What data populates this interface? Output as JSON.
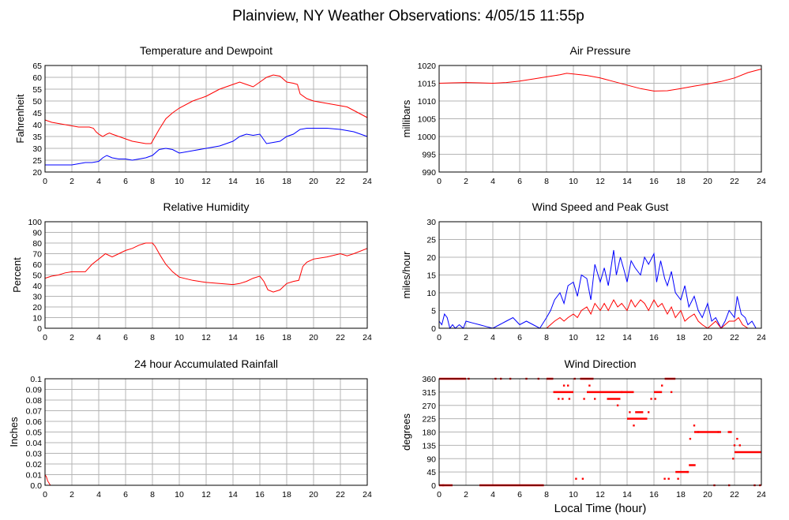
{
  "page": {
    "title": "Plainview, NY Weather Observations: 4/05/15 11:55p",
    "xlabel": "Local Time (hour)"
  },
  "colors": {
    "series_red": "#ff0000",
    "series_blue": "#0000ff",
    "grid": "#b4b4b4",
    "axis": "#000000"
  },
  "chart_data": [
    {
      "type": "line",
      "title": "Temperature and Dewpoint",
      "xlabel": "",
      "ylabel": "Fahrenheit",
      "xlim": [
        0,
        24
      ],
      "ylim": [
        20,
        65
      ],
      "xticks": [
        0,
        2,
        4,
        6,
        8,
        10,
        12,
        14,
        16,
        18,
        20,
        22,
        24
      ],
      "yticks": [
        20,
        25,
        30,
        35,
        40,
        45,
        50,
        55,
        60,
        65
      ],
      "grid": true,
      "series": [
        {
          "color": "red",
          "x": [
            0,
            0.5,
            1,
            1.5,
            2,
            2.5,
            3,
            3.3,
            3.6,
            3.8,
            4,
            4.3,
            4.6,
            4.8,
            5,
            5.5,
            6,
            6.5,
            7,
            7.5,
            7.9,
            8.1,
            8.5,
            9,
            9.5,
            10,
            11,
            12,
            13,
            14,
            14.5,
            15,
            15.5,
            16,
            16.5,
            17,
            17.5,
            18,
            18.5,
            18.8,
            19,
            19.5,
            20,
            21,
            22,
            22.5,
            23,
            23.5,
            24
          ],
          "y": [
            42,
            41,
            40.5,
            40,
            39.5,
            39,
            39,
            39,
            38.5,
            37,
            36,
            35,
            36,
            36.5,
            36,
            35,
            34,
            33,
            32.5,
            32,
            32,
            34,
            38,
            42.5,
            45,
            47,
            50,
            52,
            55,
            57,
            58,
            57,
            56,
            58,
            60,
            61,
            60.5,
            58,
            57.5,
            57,
            53,
            51,
            50,
            49,
            48,
            47.5,
            46,
            44.5,
            43
          ]
        },
        {
          "color": "blue",
          "x": [
            0,
            0.5,
            1,
            1.5,
            2,
            2.5,
            3,
            3.5,
            4,
            4.3,
            4.6,
            5,
            5.5,
            6,
            6.5,
            7,
            7.5,
            8,
            8.5,
            9,
            9.5,
            10,
            11,
            12,
            13,
            14,
            14.5,
            15,
            15.5,
            16,
            16.5,
            17,
            17.5,
            18,
            18.5,
            19,
            19.5,
            20,
            21,
            22,
            22.5,
            23,
            23.5,
            24
          ],
          "y": [
            23,
            23,
            23,
            23,
            23,
            23.5,
            24,
            24,
            24.5,
            26,
            27,
            26,
            25.5,
            25.5,
            25,
            25.5,
            26,
            27,
            29.5,
            30,
            29.5,
            28,
            29,
            30,
            31,
            33,
            35,
            36,
            35.5,
            36,
            32,
            32.5,
            33,
            35,
            36,
            38,
            38.5,
            38.5,
            38.5,
            38,
            37.5,
            37,
            36,
            35
          ]
        }
      ]
    },
    {
      "type": "line",
      "title": "Air Pressure",
      "xlabel": "",
      "ylabel": "millibars",
      "xlim": [
        0,
        24
      ],
      "ylim": [
        990,
        1020
      ],
      "xticks": [
        0,
        2,
        4,
        6,
        8,
        10,
        12,
        14,
        16,
        18,
        20,
        22,
        24
      ],
      "yticks": [
        990,
        995,
        1000,
        1005,
        1010,
        1015,
        1020
      ],
      "grid": true,
      "series": [
        {
          "color": "red",
          "x": [
            0,
            1,
            2,
            3,
            4,
            5,
            6,
            7,
            8,
            9,
            9.5,
            10,
            11,
            12,
            13,
            14,
            15,
            16,
            17,
            18,
            19,
            20,
            21,
            22,
            23,
            24
          ],
          "y": [
            1015,
            1015.1,
            1015.2,
            1015.1,
            1015,
            1015.2,
            1015.6,
            1016.2,
            1016.8,
            1017.4,
            1017.8,
            1017.6,
            1017.2,
            1016.5,
            1015.5,
            1014.5,
            1013.5,
            1012.8,
            1012.9,
            1013.5,
            1014.2,
            1014.8,
            1015.5,
            1016.5,
            1018,
            1019
          ]
        }
      ]
    },
    {
      "type": "line",
      "title": "Relative Humidity",
      "xlabel": "",
      "ylabel": "Percent",
      "xlim": [
        0,
        24
      ],
      "ylim": [
        0,
        100
      ],
      "xticks": [
        0,
        2,
        4,
        6,
        8,
        10,
        12,
        14,
        16,
        18,
        20,
        22,
        24
      ],
      "yticks": [
        0,
        10,
        20,
        30,
        40,
        50,
        60,
        70,
        80,
        90,
        100
      ],
      "grid": true,
      "series": [
        {
          "color": "red",
          "x": [
            0,
            0.5,
            1,
            1.5,
            2,
            2.5,
            3,
            3.5,
            4,
            4.5,
            5,
            5.5,
            6,
            6.5,
            7,
            7.5,
            8,
            8.2,
            8.6,
            9,
            9.5,
            10,
            11,
            12,
            13,
            14,
            14.5,
            15,
            15.5,
            16,
            16.3,
            16.6,
            17,
            17.5,
            18,
            18.5,
            18.9,
            19.2,
            19.5,
            20,
            21,
            22,
            22.5,
            23,
            24
          ],
          "y": [
            47,
            49,
            50,
            52,
            53,
            53,
            53,
            60,
            65,
            70,
            67,
            70,
            73,
            75,
            78,
            80,
            80,
            77,
            68,
            60,
            53,
            48,
            45,
            43,
            42,
            41,
            42,
            44,
            47,
            49,
            44,
            36,
            34,
            36,
            42,
            44,
            45,
            58,
            62,
            65,
            67,
            70,
            68,
            70,
            75
          ]
        }
      ]
    },
    {
      "type": "line",
      "title": "Wind Speed and Peak Gust",
      "xlabel": "",
      "ylabel": "miles/hour",
      "xlim": [
        0,
        24
      ],
      "ylim": [
        0,
        30
      ],
      "xticks": [
        0,
        2,
        4,
        6,
        8,
        10,
        12,
        14,
        16,
        18,
        20,
        22,
        24
      ],
      "yticks": [
        0,
        5,
        10,
        15,
        20,
        25,
        30
      ],
      "grid": true,
      "series": [
        {
          "color": "blue",
          "x": [
            0,
            0.2,
            0.4,
            0.6,
            0.8,
            1,
            1.2,
            1.5,
            1.8,
            2,
            2.5,
            3,
            3.5,
            4,
            4.5,
            5,
            5.5,
            6,
            6.5,
            7,
            7.5,
            8,
            8.3,
            8.6,
            9,
            9.3,
            9.6,
            10,
            10.3,
            10.6,
            11,
            11.3,
            11.6,
            12,
            12.3,
            12.6,
            13,
            13.2,
            13.5,
            13.8,
            14,
            14.3,
            14.6,
            15,
            15.3,
            15.6,
            16,
            16.2,
            16.5,
            16.8,
            17,
            17.3,
            17.6,
            18,
            18.3,
            18.6,
            19,
            19.3,
            19.6,
            20,
            20.3,
            20.6,
            21,
            21.3,
            21.6,
            22,
            22.2,
            22.5,
            22.8,
            23,
            23.3,
            23.6,
            24
          ],
          "y": [
            2,
            1,
            4,
            3,
            0,
            1,
            0,
            1,
            0,
            2,
            1.5,
            1,
            0.5,
            0,
            1,
            2,
            3,
            1,
            2,
            1,
            0,
            3,
            5,
            8,
            10,
            7,
            12,
            13,
            9,
            15,
            14,
            8,
            18,
            13,
            17,
            12,
            22,
            15,
            20,
            16,
            13,
            19,
            17,
            15,
            20,
            18,
            21,
            13,
            19,
            14,
            12,
            16,
            10,
            8,
            12,
            6,
            9,
            5,
            3,
            7,
            2,
            3,
            0,
            2,
            5,
            3,
            9,
            4,
            3,
            1,
            2,
            0,
            0
          ]
        },
        {
          "color": "red",
          "x": [
            8,
            8.3,
            8.6,
            9,
            9.3,
            9.6,
            10,
            10.3,
            10.6,
            11,
            11.3,
            11.6,
            12,
            12.3,
            12.6,
            13,
            13.3,
            13.6,
            14,
            14.3,
            14.6,
            15,
            15.3,
            15.6,
            16,
            16.3,
            16.6,
            17,
            17.3,
            17.6,
            18,
            18.3,
            18.6,
            19,
            19.3,
            19.6,
            20,
            20.3,
            20.6,
            21,
            21.3,
            21.6,
            22,
            22.3,
            22.6,
            23
          ],
          "y": [
            0,
            1,
            2,
            3,
            2,
            3,
            4,
            3,
            5,
            6,
            4,
            7,
            5,
            7,
            5,
            8,
            6,
            7,
            5,
            8,
            6,
            8,
            7,
            5,
            8,
            6,
            7,
            4,
            6,
            3,
            5,
            2,
            3,
            4,
            2,
            1,
            0,
            1,
            2,
            0,
            1,
            2,
            2,
            3,
            1,
            0
          ]
        }
      ]
    },
    {
      "type": "line",
      "title": "24 hour Accumulated Rainfall",
      "xlabel": "",
      "ylabel": "Inches",
      "xlim": [
        0,
        24
      ],
      "ylim": [
        0,
        0.1
      ],
      "xticks": [
        0,
        2,
        4,
        6,
        8,
        10,
        12,
        14,
        16,
        18,
        20,
        22,
        24
      ],
      "yticks": [
        "0.0",
        "0.01",
        "0.02",
        "0.03",
        "0.04",
        "0.05",
        "0.06",
        "0.07",
        "0.08",
        "0.09",
        "0.1"
      ],
      "grid": true,
      "series": [
        {
          "color": "red",
          "x": [
            0,
            0.1,
            0.2,
            0.4,
            24
          ],
          "y": [
            0.01,
            0.008,
            0.004,
            0,
            0
          ]
        }
      ]
    },
    {
      "type": "scatter",
      "title": "Wind Direction",
      "xlabel": "",
      "ylabel": "degrees",
      "xlim": [
        0,
        24
      ],
      "ylim": [
        0,
        360
      ],
      "xticks": [
        0,
        2,
        4,
        6,
        8,
        10,
        12,
        14,
        16,
        18,
        20,
        22,
        24
      ],
      "yticks": [
        0,
        45,
        90,
        135,
        180,
        225,
        270,
        315,
        360
      ],
      "grid": true,
      "segments": [
        {
          "x0": 0,
          "x1": 2,
          "y": 360
        },
        {
          "x0": 0,
          "x1": 1,
          "y": 0
        },
        {
          "x0": 3,
          "x1": 7.8,
          "y": 0
        },
        {
          "x0": 8,
          "x1": 8.5,
          "y": 360
        },
        {
          "x0": 8.5,
          "x1": 10,
          "y": 315
        },
        {
          "x0": 10.5,
          "x1": 11.5,
          "y": 360
        },
        {
          "x0": 11,
          "x1": 14.5,
          "y": 315
        },
        {
          "x0": 12.5,
          "x1": 13.5,
          "y": 292
        },
        {
          "x0": 14,
          "x1": 15.5,
          "y": 225
        },
        {
          "x0": 14.6,
          "x1": 15.2,
          "y": 247
        },
        {
          "x0": 16,
          "x1": 16.6,
          "y": 315
        },
        {
          "x0": 16.8,
          "x1": 17.6,
          "y": 360
        },
        {
          "x0": 17.6,
          "x1": 18.6,
          "y": 45
        },
        {
          "x0": 18.6,
          "x1": 19.1,
          "y": 68
        },
        {
          "x0": 19,
          "x1": 21,
          "y": 180
        },
        {
          "x0": 21.5,
          "x1": 21.8,
          "y": 180
        },
        {
          "x0": 22,
          "x1": 24,
          "y": 112
        }
      ],
      "points": [
        {
          "x": 0.3,
          "y": 0
        },
        {
          "x": 2.2,
          "y": 360
        },
        {
          "x": 4.2,
          "y": 360
        },
        {
          "x": 4.6,
          "y": 360
        },
        {
          "x": 5.3,
          "y": 360
        },
        {
          "x": 6.5,
          "y": 360
        },
        {
          "x": 7.4,
          "y": 360
        },
        {
          "x": 8.9,
          "y": 292
        },
        {
          "x": 9.2,
          "y": 292
        },
        {
          "x": 9.3,
          "y": 337
        },
        {
          "x": 9.6,
          "y": 337
        },
        {
          "x": 9.7,
          "y": 292
        },
        {
          "x": 10.1,
          "y": 360
        },
        {
          "x": 10.2,
          "y": 22
        },
        {
          "x": 10.7,
          "y": 22
        },
        {
          "x": 10.8,
          "y": 292
        },
        {
          "x": 11.2,
          "y": 337
        },
        {
          "x": 11.6,
          "y": 292
        },
        {
          "x": 13.3,
          "y": 270
        },
        {
          "x": 13.6,
          "y": 315
        },
        {
          "x": 14.2,
          "y": 247
        },
        {
          "x": 14.5,
          "y": 202
        },
        {
          "x": 15.6,
          "y": 247
        },
        {
          "x": 15.8,
          "y": 292
        },
        {
          "x": 16.1,
          "y": 292
        },
        {
          "x": 16.6,
          "y": 337
        },
        {
          "x": 16.8,
          "y": 22
        },
        {
          "x": 17.1,
          "y": 22
        },
        {
          "x": 17.3,
          "y": 315
        },
        {
          "x": 17.8,
          "y": 22
        },
        {
          "x": 18.5,
          "y": 45
        },
        {
          "x": 18.7,
          "y": 157
        },
        {
          "x": 19.0,
          "y": 202
        },
        {
          "x": 19.3,
          "y": 180
        },
        {
          "x": 20.5,
          "y": 0
        },
        {
          "x": 20.8,
          "y": 180
        },
        {
          "x": 21.6,
          "y": 0
        },
        {
          "x": 21.9,
          "y": 90
        },
        {
          "x": 22.0,
          "y": 135
        },
        {
          "x": 22.2,
          "y": 157
        },
        {
          "x": 22.4,
          "y": 135
        },
        {
          "x": 23.5,
          "y": 0
        },
        {
          "x": 23.9,
          "y": 0
        }
      ]
    }
  ]
}
